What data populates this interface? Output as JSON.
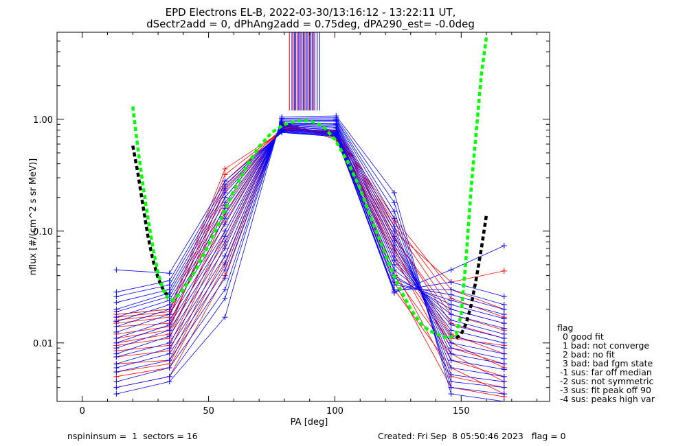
{
  "chart_data": {
    "type": "line",
    "title": "EPD Electrons EL-B, 2022-03-30/13:16:12 - 13:22:11 UT,",
    "subtitle": "dSectr2add = 0, dPhAng2add = 0.75deg, dPA290_est=  -0.0deg",
    "xlabel": "PA [deg]",
    "ylabel": "nflux [#/(cm^2 s sr MeV)]",
    "xlim": [
      -10,
      185
    ],
    "ylim": [
      0.003,
      6.0
    ],
    "yscale": "log",
    "xticks": [
      0,
      50,
      100,
      150
    ],
    "xtick_labels": [
      "0",
      "50",
      "100",
      "150"
    ],
    "yticks": [
      0.01,
      0.1,
      1.0
    ],
    "ytick_labels": [
      "0.01",
      "0.10",
      "1.00"
    ],
    "grid": false,
    "colors": {
      "red": "#ff0000",
      "blue": "#0000ff",
      "green": "#00ff00",
      "black": "#000000"
    },
    "pa_bins": [
      13.5,
      34.5,
      56.5,
      79,
      100.5,
      123.5,
      146,
      167
    ],
    "profiles_red": [
      [
        0.004,
        0.005,
        0.04,
        0.95,
        0.68,
        0.03,
        0.006,
        0.0035
      ],
      [
        0.0055,
        0.0065,
        0.06,
        0.9,
        0.7,
        0.04,
        0.008,
        0.0045
      ],
      [
        0.0075,
        0.0085,
        0.09,
        0.88,
        0.72,
        0.055,
        0.01,
        0.006
      ],
      [
        0.0095,
        0.011,
        0.14,
        0.85,
        0.74,
        0.075,
        0.012,
        0.008
      ],
      [
        0.012,
        0.014,
        0.2,
        0.83,
        0.75,
        0.09,
        0.015,
        0.011
      ],
      [
        0.015,
        0.017,
        0.28,
        0.8,
        0.78,
        0.11,
        0.02,
        0.015
      ],
      [
        0.018,
        0.02,
        0.36,
        0.78,
        0.8,
        0.13,
        0.03,
        0.02
      ],
      [
        0.01,
        0.012,
        0.12,
        0.86,
        0.7,
        0.06,
        0.007,
        0.005
      ],
      [
        0.0065,
        0.007,
        0.075,
        0.92,
        0.66,
        0.045,
        0.005,
        0.004
      ],
      [
        0.014,
        0.015,
        0.17,
        0.82,
        0.76,
        0.1,
        0.035,
        0.044
      ],
      [
        0.0085,
        0.0095,
        0.1,
        0.87,
        0.73,
        0.07,
        0.009,
        0.0065
      ],
      [
        0.016,
        0.018,
        0.23,
        0.81,
        0.77,
        0.085,
        0.018,
        0.013
      ],
      [
        0.005,
        0.006,
        0.05,
        0.94,
        0.69,
        0.035,
        0.004,
        0.0033
      ],
      [
        0.011,
        0.013,
        0.25,
        0.84,
        0.71,
        0.065,
        0.011,
        0.0095
      ],
      [
        0.017,
        0.019,
        0.32,
        0.79,
        0.79,
        0.12,
        0.025,
        0.017
      ]
    ],
    "profiles_blue": [
      [
        0.0035,
        0.0045,
        0.017,
        1.05,
        1.07,
        0.22,
        0.0035,
        0.003
      ],
      [
        0.0045,
        0.006,
        0.03,
        1.0,
        1.0,
        0.15,
        0.0045,
        0.004
      ],
      [
        0.006,
        0.008,
        0.045,
        0.95,
        0.95,
        0.11,
        0.006,
        0.005
      ],
      [
        0.0075,
        0.01,
        0.06,
        0.92,
        0.9,
        0.09,
        0.008,
        0.0065
      ],
      [
        0.009,
        0.013,
        0.08,
        0.9,
        0.85,
        0.075,
        0.01,
        0.008
      ],
      [
        0.011,
        0.016,
        0.1,
        0.88,
        0.8,
        0.06,
        0.013,
        0.01
      ],
      [
        0.014,
        0.02,
        0.13,
        0.85,
        0.77,
        0.05,
        0.016,
        0.012
      ],
      [
        0.017,
        0.024,
        0.16,
        0.82,
        0.75,
        0.04,
        0.02,
        0.015
      ],
      [
        0.02,
        0.028,
        0.2,
        0.8,
        0.73,
        0.035,
        0.024,
        0.018
      ],
      [
        0.026,
        0.033,
        0.24,
        0.78,
        0.71,
        0.03,
        0.03,
        0.022
      ],
      [
        0.045,
        0.042,
        0.28,
        0.76,
        0.7,
        0.028,
        0.045,
        0.074
      ],
      [
        0.0055,
        0.007,
        0.038,
        0.97,
        0.98,
        0.13,
        0.0052,
        0.0045
      ],
      [
        0.01,
        0.0145,
        0.09,
        0.89,
        0.83,
        0.068,
        0.0115,
        0.009
      ],
      [
        0.0125,
        0.018,
        0.115,
        0.87,
        0.79,
        0.055,
        0.0145,
        0.011
      ],
      [
        0.0155,
        0.022,
        0.145,
        0.84,
        0.76,
        0.045,
        0.018,
        0.0135
      ],
      [
        0.019,
        0.026,
        0.18,
        0.81,
        0.74,
        0.038,
        0.022,
        0.0165
      ],
      [
        0.023,
        0.03,
        0.22,
        0.79,
        0.72,
        0.033,
        0.027,
        0.02
      ],
      [
        0.008,
        0.0115,
        0.07,
        0.91,
        0.88,
        0.082,
        0.009,
        0.0072
      ],
      [
        0.0065,
        0.009,
        0.052,
        0.93,
        0.92,
        0.1,
        0.007,
        0.0058
      ],
      [
        0.004,
        0.005,
        0.025,
        1.02,
        1.03,
        0.18,
        0.004,
        0.0035
      ],
      [
        0.0285,
        0.036,
        0.26,
        0.77,
        0.71,
        0.029,
        0.035,
        0.026
      ]
    ],
    "vertical_lines": {
      "x": [
        82,
        83,
        83.5,
        84,
        84.5,
        85,
        85.5,
        86,
        86.5,
        87,
        87.5,
        88,
        88.5,
        89,
        89.5,
        90,
        90.5,
        91,
        91.5,
        92,
        93,
        94
      ],
      "colors": [
        "red",
        "blue",
        "red",
        "blue",
        "blue",
        "red",
        "blue",
        "blue",
        "red",
        "blue",
        "blue",
        "red",
        "blue",
        "blue",
        "red",
        "blue",
        "blue",
        "blue",
        "red",
        "blue",
        "blue",
        "blue"
      ],
      "y_from": 1.2,
      "y_to": 6.0
    },
    "fit_green": {
      "x": [
        20,
        22,
        24,
        26,
        28,
        30,
        32,
        34,
        36,
        40,
        45,
        50,
        55,
        60,
        65,
        70,
        75,
        80,
        85,
        90,
        95,
        100,
        105,
        110,
        115,
        120,
        125,
        130,
        135,
        140,
        145,
        148,
        150,
        152,
        154,
        156,
        158,
        160
      ],
      "y": [
        1.3,
        0.55,
        0.26,
        0.13,
        0.07,
        0.042,
        0.03,
        0.025,
        0.024,
        0.03,
        0.045,
        0.075,
        0.13,
        0.23,
        0.38,
        0.57,
        0.76,
        0.9,
        0.97,
        0.97,
        0.88,
        0.66,
        0.42,
        0.24,
        0.12,
        0.062,
        0.033,
        0.02,
        0.014,
        0.012,
        0.011,
        0.012,
        0.018,
        0.06,
        0.25,
        0.8,
        2.5,
        5.5
      ]
    },
    "fit_black": {
      "x": [
        20,
        22,
        24,
        26,
        28,
        30,
        32,
        34,
        148,
        150,
        152,
        154,
        156,
        158,
        160
      ],
      "y": [
        0.58,
        0.33,
        0.17,
        0.09,
        0.055,
        0.038,
        0.03,
        0.026,
        0.011,
        0.012,
        0.015,
        0.022,
        0.038,
        0.07,
        0.14
      ]
    }
  },
  "legend": {
    "title": "flag",
    "items": [
      "  0 good fit",
      "  1 bad: not converge",
      "  2 bad: no fit",
      "  3 bad: bad fgm state",
      " -1 sus: far off median",
      " -2 sus: not symmetric",
      " -3 sus: fit peak off 90",
      " -4 sus: peaks high var"
    ]
  },
  "footer": {
    "left": "nspininsum =  1  sectors = 16",
    "right": "Created: Fri Sep  8 05:50:46 2023   flag = 0"
  }
}
